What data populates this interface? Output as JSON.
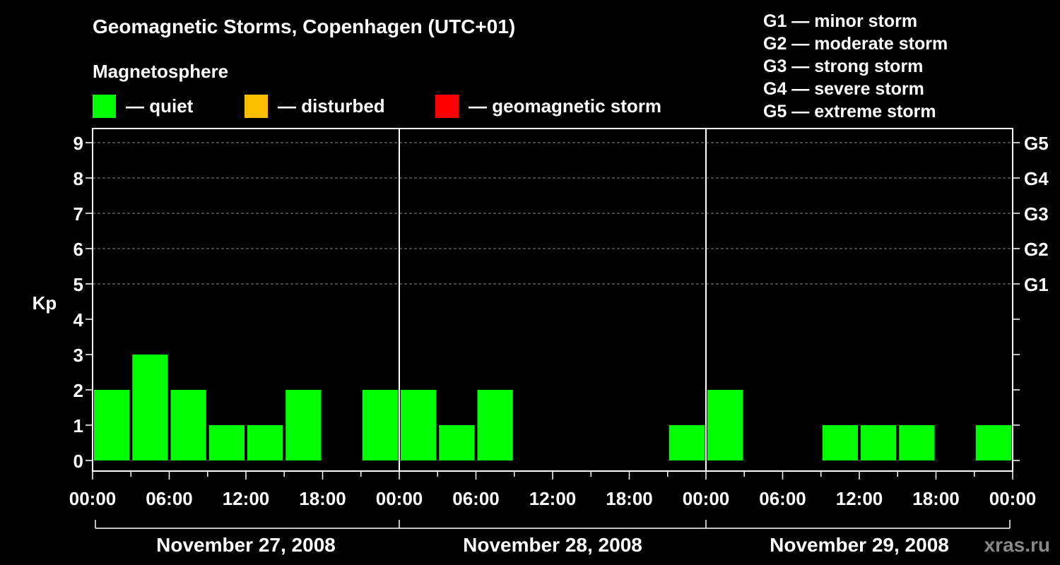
{
  "chart_data": {
    "type": "bar",
    "title": "Geomagnetic Storms, Copenhagen (UTC+01)",
    "subtitle": "Magnetosphere",
    "ylabel": "Kp",
    "ylim": [
      0,
      9
    ],
    "y_ticks": [
      "0",
      "1",
      "2",
      "3",
      "4",
      "5",
      "6",
      "7",
      "8",
      "9"
    ],
    "right_axis_labels": [
      {
        "kp": 5,
        "label": "G1"
      },
      {
        "kp": 6,
        "label": "G2"
      },
      {
        "kp": 7,
        "label": "G3"
      },
      {
        "kp": 8,
        "label": "G4"
      },
      {
        "kp": 9,
        "label": "G5"
      }
    ],
    "x_tick_labels": [
      "00:00",
      "06:00",
      "12:00",
      "18:00",
      "00:00",
      "06:00",
      "12:00",
      "18:00",
      "00:00",
      "06:00",
      "12:00",
      "18:00",
      "00:00"
    ],
    "days": [
      "November 27, 2008",
      "November 28, 2008",
      "November 29, 2008"
    ],
    "interval_hours": 3,
    "kp_values": [
      2,
      3,
      2,
      1,
      1,
      2,
      0,
      2,
      2,
      1,
      2,
      0,
      0,
      0,
      0,
      1,
      2,
      0,
      0,
      1,
      1,
      1,
      0,
      1
    ],
    "grid": "dashed horizontal",
    "legend": [
      {
        "label": "— quiet",
        "color": "#00ff00"
      },
      {
        "label": "— disturbed",
        "color": "#ffbf00"
      },
      {
        "label": "— geomagnetic storm",
        "color": "#ff0000"
      }
    ],
    "storm_levels": [
      "G1 — minor storm",
      "G2 — moderate storm",
      "G3 — strong storm",
      "G4 — severe storm",
      "G5 — extreme storm"
    ]
  },
  "watermark": "xras.ru"
}
